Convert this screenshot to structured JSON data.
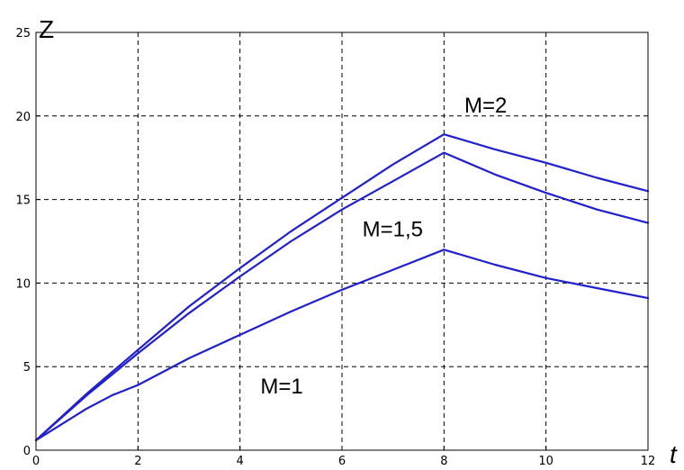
{
  "chart_data": {
    "type": "line",
    "title": "",
    "xlabel": "t",
    "ylabel": "Z",
    "xlim": [
      0,
      12
    ],
    "ylim": [
      0,
      25
    ],
    "xticks": [
      0,
      2,
      4,
      6,
      8,
      10,
      12
    ],
    "yticks": [
      0,
      5,
      10,
      15,
      20,
      25
    ],
    "grid": true,
    "line_color": "#2020d0",
    "series": [
      {
        "name": "M=2",
        "x": [
          0,
          1,
          2,
          3,
          4,
          5,
          6,
          7,
          8,
          9,
          10,
          11,
          12
        ],
        "values": [
          0.6,
          3.4,
          6.0,
          8.6,
          10.9,
          13.1,
          15.1,
          17.1,
          18.9,
          18.0,
          17.2,
          16.3,
          15.5
        ]
      },
      {
        "name": "M=1,5",
        "x": [
          0,
          1,
          2,
          3,
          4,
          5,
          6,
          7,
          8,
          9,
          10,
          11,
          12
        ],
        "values": [
          0.6,
          3.3,
          5.8,
          8.2,
          10.4,
          12.5,
          14.4,
          16.1,
          17.8,
          16.5,
          15.4,
          14.4,
          13.6
        ]
      },
      {
        "name": "M=1",
        "x": [
          0,
          1,
          1.5,
          2,
          3,
          4,
          5,
          6,
          7,
          8,
          9,
          10,
          11,
          12
        ],
        "values": [
          0.6,
          2.5,
          3.3,
          3.9,
          5.5,
          6.9,
          8.3,
          9.6,
          10.8,
          12.0,
          11.1,
          10.3,
          9.7,
          9.1
        ]
      }
    ],
    "annotations": [
      {
        "text": "M=2",
        "x": 8.4,
        "y": 20.2
      },
      {
        "text": "M=1,5",
        "x": 6.4,
        "y": 12.8
      },
      {
        "text": "M=1",
        "x": 4.4,
        "y": 3.4
      }
    ]
  }
}
